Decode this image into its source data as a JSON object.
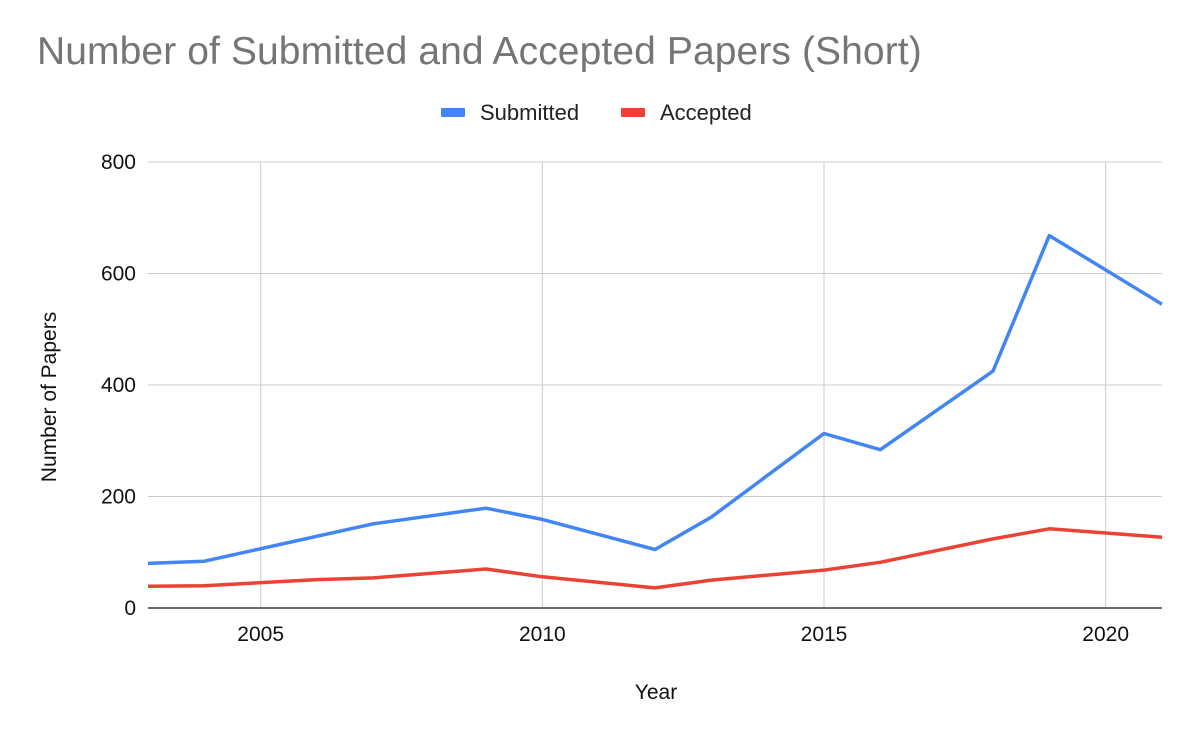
{
  "chart_data": {
    "type": "line",
    "title": "Number of Submitted and Accepted Papers (Short)",
    "xlabel": "Year",
    "ylabel": "Number of Papers",
    "xlim": [
      2003,
      2021
    ],
    "ylim": [
      0,
      800
    ],
    "x_ticks": [
      "2005",
      "2010",
      "2015",
      "2020"
    ],
    "y_ticks": [
      "0",
      "200",
      "400",
      "600",
      "800"
    ],
    "grid": true,
    "legend_position": "top-center",
    "series": [
      {
        "name": "Submitted",
        "color": "#4285F4",
        "points": [
          {
            "x": 2003,
            "y": 80
          },
          {
            "x": 2004,
            "y": 84
          },
          {
            "x": 2007,
            "y": 151
          },
          {
            "x": 2009,
            "y": 179
          },
          {
            "x": 2010,
            "y": 159
          },
          {
            "x": 2012,
            "y": 105
          },
          {
            "x": 2013,
            "y": 163
          },
          {
            "x": 2015,
            "y": 313
          },
          {
            "x": 2016,
            "y": 284
          },
          {
            "x": 2018,
            "y": 425
          },
          {
            "x": 2019,
            "y": 668
          },
          {
            "x": 2021,
            "y": 545
          }
        ]
      },
      {
        "name": "Accepted",
        "color": "#EA4335",
        "points": [
          {
            "x": 2003,
            "y": 39
          },
          {
            "x": 2004,
            "y": 40
          },
          {
            "x": 2006,
            "y": 51
          },
          {
            "x": 2007,
            "y": 54
          },
          {
            "x": 2009,
            "y": 70
          },
          {
            "x": 2010,
            "y": 56
          },
          {
            "x": 2012,
            "y": 36
          },
          {
            "x": 2013,
            "y": 50
          },
          {
            "x": 2015,
            "y": 68
          },
          {
            "x": 2016,
            "y": 82
          },
          {
            "x": 2018,
            "y": 124
          },
          {
            "x": 2019,
            "y": 142
          },
          {
            "x": 2021,
            "y": 127
          }
        ]
      }
    ]
  }
}
